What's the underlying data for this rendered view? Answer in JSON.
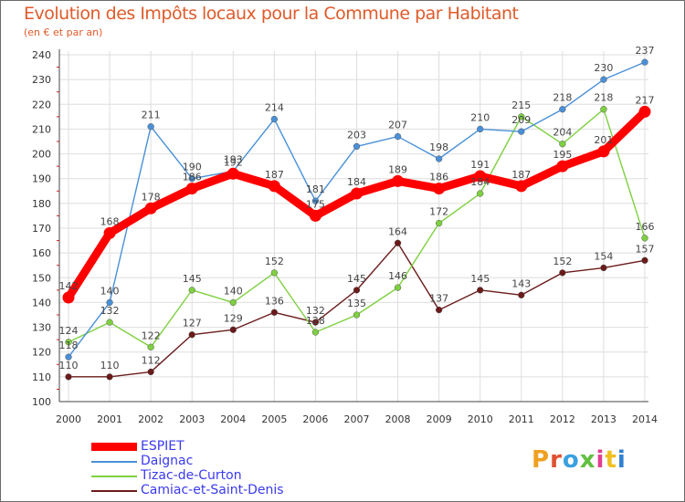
{
  "header": {
    "title": "Evolution des Impôts locaux pour la Commune par Habitant",
    "subtitle": "(en € et par an)"
  },
  "logo": {
    "text": "Proxiti",
    "colors": [
      "#f0a020",
      "#e05030",
      "#3aa0e0",
      "#60c040",
      "#e04090",
      "#f0c020",
      "#3080d0"
    ]
  },
  "chart_data": {
    "type": "line",
    "x": [
      "2000",
      "2001",
      "2002",
      "2003",
      "2004",
      "2005",
      "2006",
      "2007",
      "2008",
      "2009",
      "2010",
      "2011",
      "2012",
      "2013",
      "2014"
    ],
    "ylim": [
      100,
      240
    ],
    "yticks": [
      "100",
      "110",
      "120",
      "130",
      "140",
      "150",
      "160",
      "170",
      "180",
      "190",
      "200",
      "210",
      "220",
      "230",
      "240"
    ],
    "grid": true,
    "legend_position": "bottom-left",
    "series": [
      {
        "name": "ESPIET",
        "color": "#ff0000",
        "values": [
          142,
          168,
          178,
          186,
          192,
          187,
          175,
          184,
          189,
          186,
          191,
          187,
          195,
          201,
          217
        ],
        "labels": [
          "142",
          "168",
          "178",
          "186",
          "192",
          "187",
          "175",
          "184",
          "189",
          "186",
          "191",
          "187",
          "195",
          "201",
          "217"
        ]
      },
      {
        "name": "Daignac",
        "color": "#4a90d8",
        "values": [
          118,
          140,
          211,
          190,
          193,
          214,
          181,
          203,
          207,
          198,
          210,
          209,
          218,
          230,
          237
        ],
        "labels": [
          "118",
          "140",
          "211",
          "190",
          "193",
          "214",
          "181",
          "203",
          "207",
          "198",
          "210",
          "209",
          "218",
          "230",
          "237"
        ]
      },
      {
        "name": "Tizac-de-Curton",
        "color": "#7ed040",
        "values": [
          124,
          132,
          122,
          145,
          140,
          152,
          128,
          135,
          146,
          172,
          184,
          215,
          204,
          218,
          166
        ],
        "labels": [
          "124",
          "132",
          "122",
          "145",
          "140",
          "152",
          "128",
          "135",
          "146",
          "172",
          "184",
          "215",
          "204",
          "218",
          "166"
        ]
      },
      {
        "name": "Camiac-et-Saint-Denis",
        "color": "#6b1a1a",
        "values": [
          110,
          110,
          112,
          127,
          129,
          136,
          132,
          145,
          164,
          137,
          145,
          143,
          152,
          154,
          157
        ],
        "labels": [
          "110",
          "110",
          "112",
          "127",
          "129",
          "136",
          "132",
          "145",
          "164",
          "137",
          "145",
          "143",
          "152",
          "154",
          "157"
        ]
      }
    ]
  }
}
